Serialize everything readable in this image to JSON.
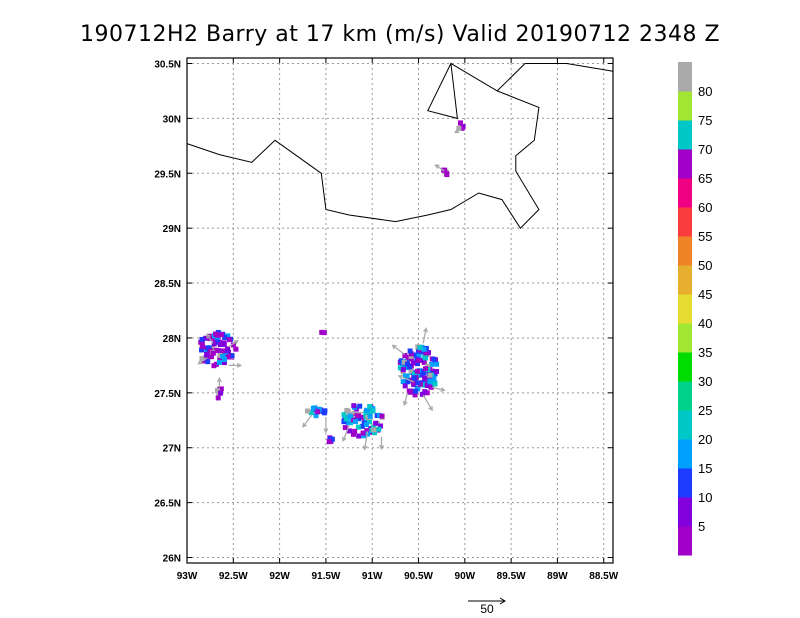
{
  "chart_data": {
    "type": "scatter",
    "title": "190712H2 Barry at 17 km (m/s) Valid 20190712 2348 Z",
    "xlim": [
      -93.0,
      -88.4
    ],
    "ylim": [
      25.95,
      30.55
    ],
    "x_ticks": [
      -93,
      -92.5,
      -92,
      -91.5,
      -91,
      -90.5,
      -90,
      -89.5,
      -89,
      -88.5
    ],
    "x_tick_labels": [
      "93W",
      "92.5W",
      "92W",
      "91.5W",
      "91W",
      "90.5W",
      "90W",
      "89.5W",
      "89W",
      "88.5W"
    ],
    "y_ticks": [
      26,
      26.5,
      27,
      27.5,
      28,
      28.5,
      29,
      29.5,
      30,
      30.5
    ],
    "y_tick_labels": [
      "26N",
      "26.5N",
      "27N",
      "27.5N",
      "28N",
      "28.5N",
      "29N",
      "29.5N",
      "30N",
      "30.5N"
    ],
    "grid": true,
    "colorbar": {
      "levels": [
        5,
        10,
        15,
        20,
        25,
        30,
        35,
        40,
        45,
        50,
        55,
        60,
        65,
        70,
        75,
        80
      ],
      "tick_labels": [
        "5",
        "10",
        "15",
        "20",
        "25",
        "30",
        "35",
        "40",
        "45",
        "50",
        "55",
        "60",
        "65",
        "70",
        "75",
        "80"
      ],
      "colors": [
        "#a000c8",
        "#8200dc",
        "#1e3cff",
        "#00a0ff",
        "#00c8c8",
        "#00d28c",
        "#00dc00",
        "#a0e632",
        "#e6dc32",
        "#e6af2d",
        "#f08228",
        "#fa3c3c",
        "#f00082",
        "#a000c8",
        "#00c8c8",
        "#a0e632",
        "#aaaaaa"
      ]
    },
    "reference_vector": {
      "label": "50",
      "speed": 50
    },
    "coastline": [
      [
        -93.0,
        29.77
      ],
      [
        -92.65,
        29.67
      ],
      [
        -92.3,
        29.6
      ],
      [
        -92.05,
        29.8
      ],
      [
        -91.55,
        29.5
      ],
      [
        -91.5,
        29.17
      ],
      [
        -91.25,
        29.12
      ],
      [
        -90.75,
        29.06
      ],
      [
        -90.4,
        29.12
      ],
      [
        -90.15,
        29.17
      ],
      [
        -89.85,
        29.32
      ],
      [
        -89.6,
        29.26
      ],
      [
        -89.4,
        29.0
      ],
      [
        -89.2,
        29.17
      ],
      [
        -89.45,
        29.52
      ],
      [
        -89.45,
        29.66
      ],
      [
        -89.25,
        29.8
      ],
      [
        -89.2,
        30.1
      ],
      [
        -89.65,
        30.25
      ],
      [
        -90.15,
        30.5
      ],
      [
        -90.4,
        30.07
      ],
      [
        -90.08,
        30.0
      ],
      [
        -90.15,
        30.5
      ],
      [
        -89.65,
        30.25
      ],
      [
        -89.35,
        30.5
      ],
      [
        -88.9,
        30.5
      ],
      [
        -88.4,
        30.43
      ]
    ],
    "clusters": [
      {
        "lon": -92.68,
        "lat": 27.9,
        "w": 0.42,
        "h": 0.32,
        "count": 80,
        "weights": [
          0.45,
          0.2,
          0.15,
          0.1,
          0.0,
          0.0,
          0.0,
          0.0,
          0.0,
          0.0,
          0.0,
          0.0,
          0.0,
          0.0,
          0.0,
          0.0,
          0.1
        ]
      },
      {
        "lon": -92.65,
        "lat": 27.5,
        "w": 0.07,
        "h": 0.12,
        "count": 6,
        "weights": [
          0.6,
          0.2,
          0.0,
          0.0,
          0.0,
          0.0,
          0.0,
          0.0,
          0.0,
          0.0,
          0.0,
          0.0,
          0.0,
          0.0,
          0.0,
          0.0,
          0.2
        ]
      },
      {
        "lon": -90.5,
        "lat": 27.7,
        "w": 0.42,
        "h": 0.45,
        "count": 120,
        "weights": [
          0.25,
          0.15,
          0.3,
          0.15,
          0.05,
          0.0,
          0.0,
          0.0,
          0.0,
          0.0,
          0.0,
          0.0,
          0.0,
          0.0,
          0.0,
          0.0,
          0.1
        ]
      },
      {
        "lon": -91.1,
        "lat": 27.25,
        "w": 0.45,
        "h": 0.3,
        "count": 70,
        "weights": [
          0.1,
          0.1,
          0.15,
          0.25,
          0.3,
          0.0,
          0.0,
          0.0,
          0.0,
          0.0,
          0.0,
          0.0,
          0.0,
          0.0,
          0.0,
          0.0,
          0.1
        ]
      },
      {
        "lon": -91.6,
        "lat": 27.33,
        "w": 0.2,
        "h": 0.08,
        "count": 14,
        "weights": [
          0.1,
          0.1,
          0.2,
          0.3,
          0.2,
          0.0,
          0.0,
          0.0,
          0.0,
          0.0,
          0.0,
          0.0,
          0.0,
          0.0,
          0.0,
          0.0,
          0.1
        ]
      },
      {
        "lon": -91.45,
        "lat": 27.07,
        "w": 0.06,
        "h": 0.07,
        "count": 5,
        "weights": [
          0.5,
          0.2,
          0.2,
          0.0,
          0.0,
          0.0,
          0.0,
          0.0,
          0.0,
          0.0,
          0.0,
          0.0,
          0.0,
          0.0,
          0.0,
          0.0,
          0.1
        ]
      },
      {
        "lon": -90.22,
        "lat": 29.5,
        "w": 0.06,
        "h": 0.07,
        "count": 5,
        "weights": [
          0.7,
          0.0,
          0.0,
          0.0,
          0.0,
          0.0,
          0.0,
          0.0,
          0.0,
          0.0,
          0.0,
          0.0,
          0.0,
          0.0,
          0.0,
          0.0,
          0.3
        ]
      },
      {
        "lon": -90.04,
        "lat": 29.93,
        "w": 0.06,
        "h": 0.08,
        "count": 5,
        "weights": [
          0.3,
          0.4,
          0.0,
          0.0,
          0.0,
          0.0,
          0.0,
          0.0,
          0.0,
          0.0,
          0.0,
          0.0,
          0.0,
          0.0,
          0.0,
          0.0,
          0.3
        ]
      },
      {
        "lon": -91.53,
        "lat": 28.05,
        "w": 0.03,
        "h": 0.03,
        "count": 2,
        "weights": [
          0.6,
          0.4,
          0.0,
          0.0,
          0.0,
          0.0,
          0.0,
          0.0,
          0.0,
          0.0,
          0.0,
          0.0,
          0.0,
          0.0,
          0.0,
          0.0,
          0.0
        ]
      }
    ],
    "arrows": [
      {
        "lon": -92.72,
        "lat": 27.95,
        "u": -2,
        "v": 3
      },
      {
        "lon": -92.55,
        "lat": 27.92,
        "u": 3,
        "v": 2
      },
      {
        "lon": -92.55,
        "lat": 27.75,
        "u": 4,
        "v": 0
      },
      {
        "lon": -92.78,
        "lat": 27.82,
        "u": -3,
        "v": -2
      },
      {
        "lon": -92.65,
        "lat": 27.55,
        "u": 0,
        "v": 3
      },
      {
        "lon": -90.65,
        "lat": 27.85,
        "u": -4,
        "v": 3
      },
      {
        "lon": -90.45,
        "lat": 27.95,
        "u": 1,
        "v": 5
      },
      {
        "lon": -90.55,
        "lat": 27.6,
        "u": -5,
        "v": 2
      },
      {
        "lon": -90.35,
        "lat": 27.55,
        "u": 4,
        "v": -1
      },
      {
        "lon": -90.45,
        "lat": 27.48,
        "u": 3,
        "v": -5
      },
      {
        "lon": -90.62,
        "lat": 27.5,
        "u": -1,
        "v": -4
      },
      {
        "lon": -91.25,
        "lat": 27.2,
        "u": -2,
        "v": -5
      },
      {
        "lon": -91.05,
        "lat": 27.15,
        "u": -1,
        "v": -6
      },
      {
        "lon": -90.9,
        "lat": 27.1,
        "u": 0,
        "v": -4
      },
      {
        "lon": -91.1,
        "lat": 27.32,
        "u": -4,
        "v": 0
      },
      {
        "lon": -91.65,
        "lat": 27.3,
        "u": -3,
        "v": -4
      },
      {
        "lon": -91.5,
        "lat": 27.28,
        "u": 0,
        "v": -5
      },
      {
        "lon": -90.22,
        "lat": 29.52,
        "u": -3,
        "v": 2
      },
      {
        "lon": -90.04,
        "lat": 29.9,
        "u": -2,
        "v": -1
      }
    ]
  }
}
